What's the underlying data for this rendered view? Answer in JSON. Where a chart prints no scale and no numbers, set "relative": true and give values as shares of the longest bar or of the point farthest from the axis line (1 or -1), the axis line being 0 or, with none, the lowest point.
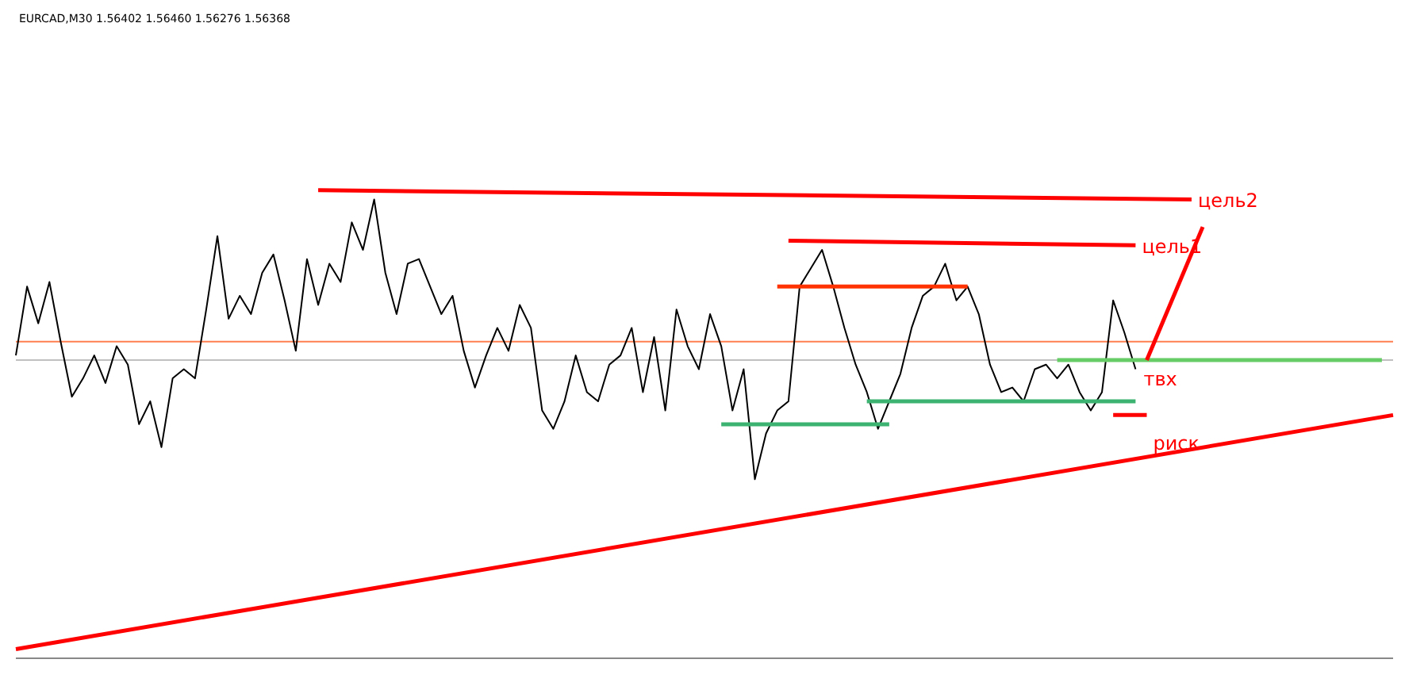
{
  "chart_data": {
    "type": "line",
    "title": "EURCAD,M30 1.56402 1.56460 1.56276 1.56368",
    "relative": true,
    "legend": false,
    "marker": "none",
    "categories": [
      null,
      null,
      null,
      null,
      null,
      null,
      null,
      null,
      null,
      null,
      null,
      null,
      null,
      null,
      null,
      null,
      null,
      null,
      null,
      null,
      null,
      null,
      null,
      null,
      null,
      null,
      null,
      null,
      null,
      null,
      null,
      null,
      null,
      null,
      null,
      null,
      null,
      null,
      null,
      null,
      null,
      null,
      null,
      null,
      null,
      null,
      null,
      null,
      null,
      null,
      null,
      null,
      null,
      null,
      null,
      null,
      null,
      null,
      null,
      null,
      null,
      null,
      null,
      null,
      null,
      null,
      null,
      null,
      null,
      null,
      null,
      null,
      null,
      null,
      null,
      null,
      null,
      null,
      null,
      null,
      null,
      null,
      null,
      null,
      null,
      null,
      null,
      null,
      null,
      null,
      null,
      null,
      null,
      null,
      null,
      null,
      null,
      null,
      null,
      null,
      null,
      null,
      null,
      null,
      null,
      null,
      null,
      null,
      null,
      null,
      null,
      null,
      null,
      null,
      null,
      null,
      null,
      null,
      null,
      null,
      null,
      null,
      null,
      null
    ],
    "series": [
      {
        "color": "#000000",
        "values": [
          0.64,
          0.79,
          0.71,
          0.8,
          0.67,
          0.55,
          0.59,
          0.64,
          0.58,
          0.66,
          0.62,
          0.49,
          0.54,
          0.44,
          0.59,
          0.61,
          0.59,
          0.74,
          0.9,
          0.72,
          0.77,
          0.73,
          0.82,
          0.86,
          0.76,
          0.65,
          0.85,
          0.75,
          0.84,
          0.8,
          0.93,
          0.87,
          0.98,
          0.82,
          0.73,
          0.84,
          0.85,
          0.79,
          0.73,
          0.77,
          0.65,
          0.57,
          0.64,
          0.7,
          0.65,
          0.75,
          0.7,
          0.52,
          0.48,
          0.54,
          0.64,
          0.56,
          0.54,
          0.62,
          0.64,
          0.7,
          0.56,
          0.68,
          0.52,
          0.74,
          0.66,
          0.61,
          0.73,
          0.66,
          0.52,
          0.61,
          0.37,
          0.47,
          0.52,
          0.54,
          0.79,
          0.83,
          0.87,
          0.79,
          0.7,
          0.62,
          0.56,
          0.48,
          0.54,
          0.6,
          0.7,
          0.77,
          0.79,
          0.84,
          0.76,
          0.79,
          0.73,
          0.62,
          0.56,
          0.57,
          0.54,
          0.61,
          0.62,
          0.59,
          0.62,
          0.56,
          0.52,
          0.56,
          0.76,
          0.69,
          0.61,
          null,
          null,
          null,
          null,
          null,
          null,
          null,
          null,
          null,
          null,
          null,
          null,
          null,
          null,
          null,
          null,
          null,
          null,
          null,
          null,
          null,
          null,
          null
        ]
      },
      {
        "name": "цель2",
        "color": "#ff0000",
        "values": [
          null,
          null,
          null,
          null,
          null,
          null,
          null,
          null,
          null,
          null,
          null,
          null,
          null,
          null,
          null,
          null,
          null,
          null,
          null,
          null,
          null,
          null,
          null,
          null,
          null,
          null,
          null,
          1.0,
          null,
          null,
          null,
          null,
          null,
          null,
          null,
          null,
          null,
          null,
          null,
          null,
          null,
          null,
          null,
          null,
          null,
          null,
          null,
          null,
          null,
          null,
          null,
          null,
          null,
          null,
          null,
          null,
          null,
          null,
          null,
          null,
          null,
          null,
          null,
          null,
          null,
          null,
          null,
          null,
          null,
          null,
          null,
          null,
          null,
          null,
          null,
          null,
          null,
          null,
          null,
          null,
          null,
          null,
          null,
          null,
          null,
          null,
          null,
          null,
          null,
          null,
          null,
          null,
          null,
          null,
          null,
          null,
          null,
          null,
          null,
          null,
          null,
          null,
          null,
          null,
          null,
          0.98,
          null,
          null,
          null,
          null,
          null,
          null,
          null,
          null,
          null,
          null,
          null,
          null,
          null,
          null,
          null,
          null,
          null,
          null
        ]
      },
      {
        "name": "цель1",
        "color": "#ff0000",
        "values": [
          null,
          null,
          null,
          null,
          null,
          null,
          null,
          null,
          null,
          null,
          null,
          null,
          null,
          null,
          null,
          null,
          null,
          null,
          null,
          null,
          null,
          null,
          null,
          null,
          null,
          null,
          null,
          null,
          null,
          null,
          null,
          null,
          null,
          null,
          null,
          null,
          null,
          null,
          null,
          null,
          null,
          null,
          null,
          null,
          null,
          null,
          null,
          null,
          null,
          null,
          null,
          null,
          null,
          null,
          null,
          null,
          null,
          null,
          null,
          null,
          null,
          null,
          null,
          null,
          null,
          null,
          null,
          null,
          null,
          0.89,
          null,
          null,
          null,
          null,
          null,
          null,
          null,
          null,
          null,
          null,
          null,
          null,
          null,
          null,
          null,
          null,
          null,
          null,
          null,
          null,
          null,
          null,
          null,
          null,
          null,
          null,
          null,
          null,
          null,
          null,
          0.88,
          null,
          null,
          null,
          null,
          null,
          null,
          null,
          null,
          null,
          null,
          null,
          null,
          null,
          null,
          null,
          null,
          null,
          null,
          null,
          null,
          null,
          null,
          null
        ]
      },
      {
        "color": "#ff3300",
        "values": [
          null,
          null,
          null,
          null,
          null,
          null,
          null,
          null,
          null,
          null,
          null,
          null,
          null,
          null,
          null,
          null,
          null,
          null,
          null,
          null,
          null,
          null,
          null,
          null,
          null,
          null,
          null,
          null,
          null,
          null,
          null,
          null,
          null,
          null,
          null,
          null,
          null,
          null,
          null,
          null,
          null,
          null,
          null,
          null,
          null,
          null,
          null,
          null,
          null,
          null,
          null,
          null,
          null,
          null,
          null,
          null,
          null,
          null,
          null,
          null,
          null,
          null,
          null,
          null,
          null,
          null,
          null,
          null,
          0.79,
          null,
          null,
          null,
          null,
          null,
          null,
          null,
          null,
          null,
          null,
          null,
          null,
          null,
          null,
          null,
          null,
          0.79,
          null,
          null,
          null,
          null,
          null,
          null,
          null,
          null,
          null,
          null,
          null,
          null,
          null,
          null,
          null,
          null,
          null,
          null,
          null,
          null,
          null,
          null,
          null,
          null,
          null,
          null,
          null,
          null,
          null,
          null,
          null,
          null,
          null,
          null,
          null,
          null,
          null,
          null
        ]
      },
      {
        "color": "#3cb371",
        "values": [
          null,
          null,
          null,
          null,
          null,
          null,
          null,
          null,
          null,
          null,
          null,
          null,
          null,
          null,
          null,
          null,
          null,
          null,
          null,
          null,
          null,
          null,
          null,
          null,
          null,
          null,
          null,
          null,
          null,
          null,
          null,
          null,
          null,
          null,
          null,
          null,
          null,
          null,
          null,
          null,
          null,
          null,
          null,
          null,
          null,
          null,
          null,
          null,
          null,
          null,
          null,
          null,
          null,
          null,
          null,
          null,
          null,
          null,
          null,
          null,
          null,
          null,
          null,
          0.49,
          null,
          null,
          null,
          null,
          null,
          null,
          null,
          null,
          null,
          null,
          null,
          null,
          null,
          null,
          0.49,
          null,
          null,
          null,
          null,
          null,
          null,
          null,
          null,
          null,
          null,
          null,
          null,
          null,
          null,
          null,
          null,
          null,
          null,
          null,
          null,
          null,
          null,
          null,
          null,
          null,
          null,
          null,
          null,
          null,
          null,
          null,
          null,
          null,
          null,
          null,
          null,
          null,
          null,
          null,
          null,
          null,
          null,
          null,
          null,
          null
        ]
      },
      {
        "color": "#3cb371",
        "values": [
          null,
          null,
          null,
          null,
          null,
          null,
          null,
          null,
          null,
          null,
          null,
          null,
          null,
          null,
          null,
          null,
          null,
          null,
          null,
          null,
          null,
          null,
          null,
          null,
          null,
          null,
          null,
          null,
          null,
          null,
          null,
          null,
          null,
          null,
          null,
          null,
          null,
          null,
          null,
          null,
          null,
          null,
          null,
          null,
          null,
          null,
          null,
          null,
          null,
          null,
          null,
          null,
          null,
          null,
          null,
          null,
          null,
          null,
          null,
          null,
          null,
          null,
          null,
          null,
          null,
          null,
          null,
          null,
          null,
          null,
          null,
          null,
          null,
          null,
          null,
          null,
          0.54,
          null,
          null,
          null,
          null,
          null,
          null,
          null,
          null,
          null,
          null,
          null,
          null,
          null,
          null,
          null,
          null,
          null,
          null,
          null,
          null,
          null,
          null,
          null,
          0.54,
          null,
          null,
          null,
          null,
          null,
          null,
          null,
          null,
          null,
          null,
          null,
          null,
          null,
          null,
          null,
          null,
          null,
          null,
          null,
          null,
          null,
          null,
          null
        ]
      },
      {
        "color": "#66cc66",
        "values": [
          null,
          null,
          null,
          null,
          null,
          null,
          null,
          null,
          null,
          null,
          null,
          null,
          null,
          null,
          null,
          null,
          null,
          null,
          null,
          null,
          null,
          null,
          null,
          null,
          null,
          null,
          null,
          null,
          null,
          null,
          null,
          null,
          null,
          null,
          null,
          null,
          null,
          null,
          null,
          null,
          null,
          null,
          null,
          null,
          null,
          null,
          null,
          null,
          null,
          null,
          null,
          null,
          null,
          null,
          null,
          null,
          null,
          null,
          null,
          null,
          null,
          null,
          null,
          null,
          null,
          null,
          null,
          null,
          null,
          null,
          null,
          null,
          null,
          null,
          null,
          null,
          null,
          null,
          null,
          null,
          null,
          null,
          null,
          null,
          null,
          null,
          null,
          null,
          null,
          null,
          null,
          null,
          null,
          0.63,
          null,
          null,
          null,
          null,
          null,
          null,
          null,
          null,
          null,
          null,
          null,
          null,
          null,
          null,
          null,
          null,
          null,
          null,
          null,
          null,
          null,
          null,
          null,
          null,
          null,
          null,
          null,
          null,
          0.63,
          null
        ]
      },
      {
        "name": "твх",
        "color": "#ff0000",
        "values": [
          null,
          null,
          null,
          null,
          null,
          null,
          null,
          null,
          null,
          null,
          null,
          null,
          null,
          null,
          null,
          null,
          null,
          null,
          null,
          null,
          null,
          null,
          null,
          null,
          null,
          null,
          null,
          null,
          null,
          null,
          null,
          null,
          null,
          null,
          null,
          null,
          null,
          null,
          null,
          null,
          null,
          null,
          null,
          null,
          null,
          null,
          null,
          null,
          null,
          null,
          null,
          null,
          null,
          null,
          null,
          null,
          null,
          null,
          null,
          null,
          null,
          null,
          null,
          null,
          null,
          null,
          null,
          null,
          null,
          null,
          null,
          null,
          null,
          null,
          null,
          null,
          null,
          null,
          null,
          null,
          null,
          null,
          null,
          null,
          null,
          null,
          null,
          null,
          null,
          null,
          null,
          null,
          null,
          null,
          null,
          null,
          null,
          null,
          null,
          null,
          null,
          0.63,
          null,
          null,
          null,
          null,
          0.92,
          null,
          null,
          null,
          null,
          null,
          null,
          null,
          null,
          null,
          null,
          null,
          null,
          null,
          null,
          null,
          null,
          null
        ]
      },
      {
        "name": "риск",
        "color": "#ff0000",
        "values": [
          null,
          null,
          null,
          null,
          null,
          null,
          null,
          null,
          null,
          null,
          null,
          null,
          null,
          null,
          null,
          null,
          null,
          null,
          null,
          null,
          null,
          null,
          null,
          null,
          null,
          null,
          null,
          null,
          null,
          null,
          null,
          null,
          null,
          null,
          null,
          null,
          null,
          null,
          null,
          null,
          null,
          null,
          null,
          null,
          null,
          null,
          null,
          null,
          null,
          null,
          null,
          null,
          null,
          null,
          null,
          null,
          null,
          null,
          null,
          null,
          null,
          null,
          null,
          null,
          null,
          null,
          null,
          null,
          null,
          null,
          null,
          null,
          null,
          null,
          null,
          null,
          null,
          null,
          null,
          null,
          null,
          null,
          null,
          null,
          null,
          null,
          null,
          null,
          null,
          null,
          null,
          null,
          null,
          null,
          null,
          null,
          null,
          null,
          0.51,
          null,
          null,
          0.51,
          null,
          null,
          null,
          null,
          null,
          null,
          null,
          null,
          null,
          null,
          null,
          null,
          null,
          null,
          null,
          null,
          null,
          null,
          null,
          null,
          null,
          null
        ]
      },
      {
        "color": "#ff0000",
        "values": [
          0.0,
          null,
          null,
          null,
          null,
          null,
          null,
          null,
          null,
          null,
          null,
          null,
          null,
          null,
          null,
          null,
          null,
          null,
          null,
          null,
          null,
          null,
          null,
          null,
          null,
          null,
          null,
          null,
          null,
          null,
          null,
          null,
          null,
          null,
          null,
          null,
          null,
          null,
          null,
          null,
          null,
          null,
          null,
          null,
          null,
          null,
          null,
          null,
          null,
          null,
          null,
          null,
          null,
          null,
          null,
          null,
          null,
          null,
          null,
          null,
          null,
          null,
          null,
          null,
          null,
          null,
          null,
          null,
          null,
          null,
          null,
          null,
          null,
          null,
          null,
          null,
          null,
          null,
          null,
          null,
          null,
          null,
          null,
          null,
          null,
          null,
          null,
          null,
          null,
          null,
          null,
          null,
          null,
          null,
          null,
          null,
          null,
          null,
          null,
          null,
          null,
          null,
          null,
          null,
          null,
          null,
          null,
          null,
          null,
          null,
          null,
          null,
          null,
          null,
          null,
          null,
          null,
          null,
          null,
          null,
          null,
          null,
          null,
          0.51
        ]
      }
    ],
    "ref_lines": [
      {
        "axis": "y",
        "value": 0.67,
        "color": "#ff7f50"
      },
      {
        "axis": "y",
        "value": 0.63,
        "color": "#c0c0c0"
      }
    ]
  }
}
